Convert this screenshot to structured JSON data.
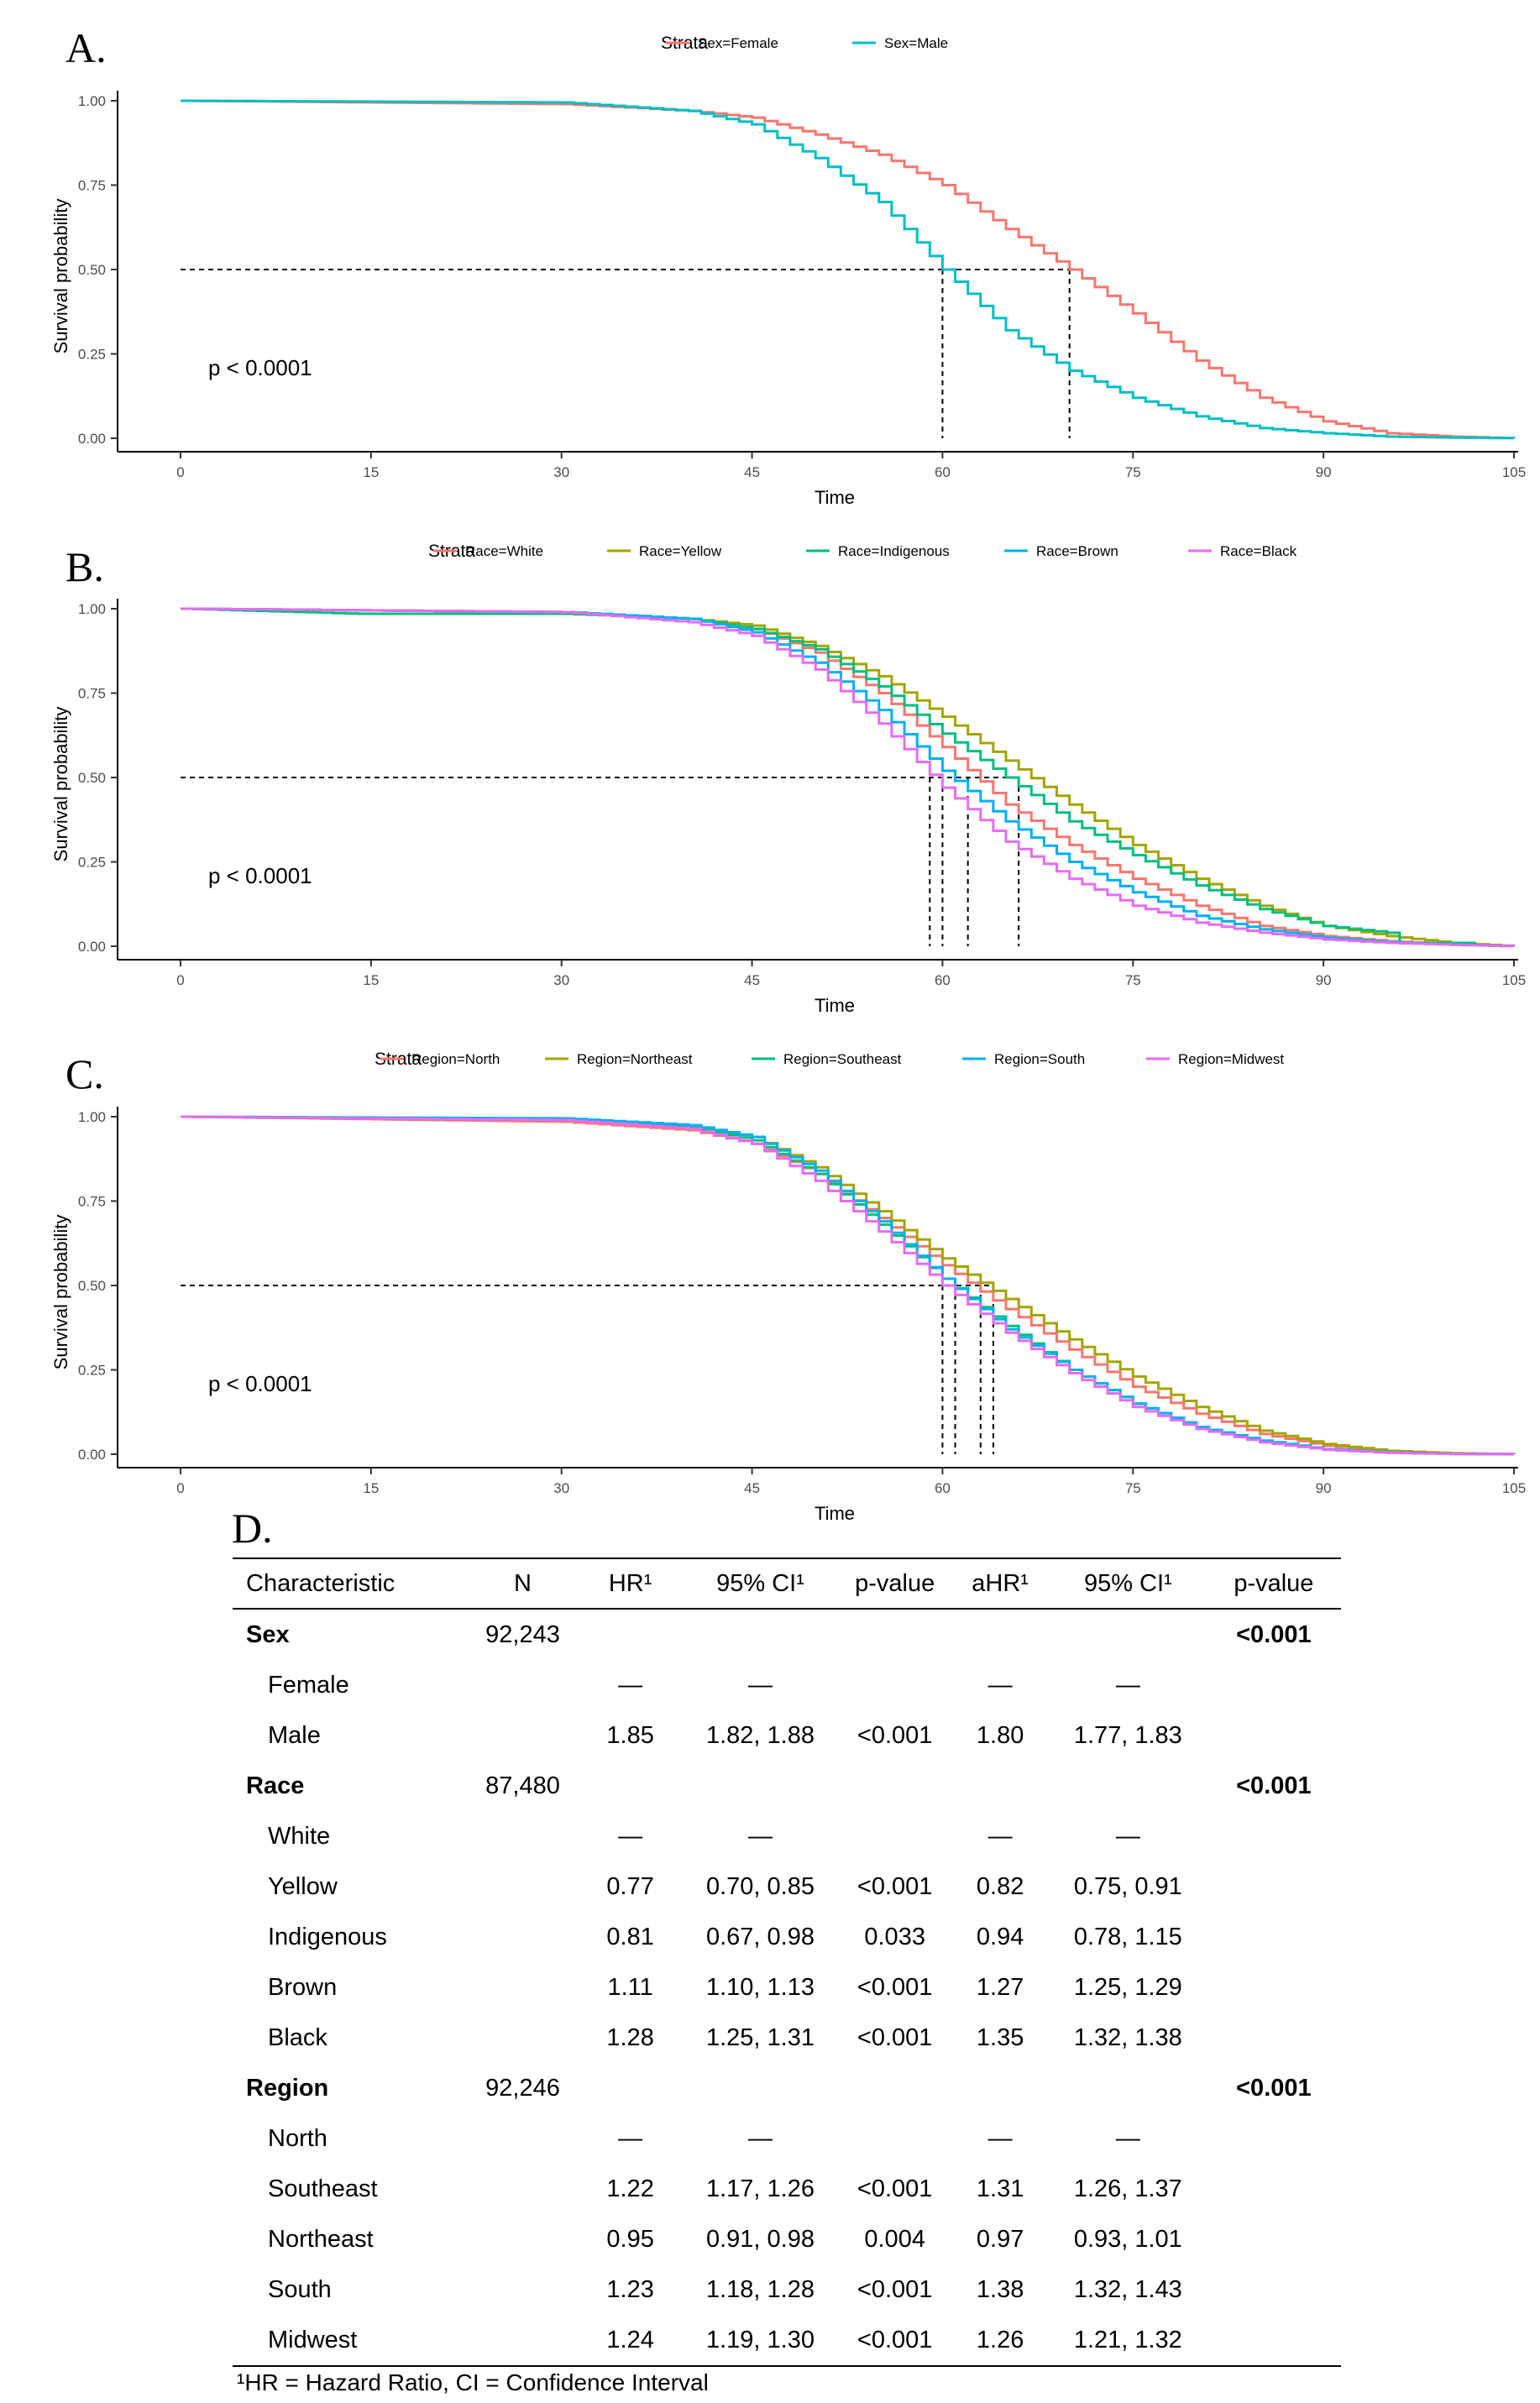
{
  "panel_labels": [
    "A.",
    "B.",
    "C.",
    "D."
  ],
  "chart_data": [
    {
      "type": "line",
      "panel": "A.",
      "xlabel": "Time",
      "ylabel": "Survival probability",
      "xlim": [
        0,
        105
      ],
      "ylim": [
        0,
        1
      ],
      "x_ticks": [
        "0",
        "15",
        "30",
        "45",
        "60",
        "75",
        "90",
        "105"
      ],
      "y_ticks": [
        "0.00",
        "0.25",
        "0.50",
        "0.75",
        "1.00"
      ],
      "legend_title": "Strata",
      "legend_position": "top",
      "annotation": "p < 0.0001",
      "median_survival": [
        60,
        70
      ],
      "series": [
        {
          "name": "Sex=Female",
          "color": "#F8766D",
          "x": [
            0,
            30,
            40,
            45,
            50,
            55,
            60,
            65,
            70,
            75,
            80,
            85,
            90,
            95,
            100,
            105
          ],
          "y": [
            1.0,
            0.99,
            0.97,
            0.95,
            0.9,
            0.84,
            0.75,
            0.62,
            0.5,
            0.37,
            0.23,
            0.12,
            0.05,
            0.015,
            0.005,
            0.0
          ]
        },
        {
          "name": "Sex=Male",
          "color": "#00BFC4",
          "x": [
            0,
            30,
            40,
            45,
            50,
            55,
            60,
            65,
            70,
            75,
            80,
            85,
            90,
            95,
            100,
            105
          ],
          "y": [
            1.0,
            0.995,
            0.97,
            0.93,
            0.83,
            0.7,
            0.5,
            0.32,
            0.2,
            0.12,
            0.065,
            0.03,
            0.015,
            0.005,
            0.002,
            0.0
          ]
        }
      ]
    },
    {
      "type": "line",
      "panel": "B.",
      "xlabel": "Time",
      "ylabel": "Survival probability",
      "xlim": [
        0,
        105
      ],
      "ylim": [
        0,
        1
      ],
      "x_ticks": [
        "0",
        "15",
        "30",
        "45",
        "60",
        "75",
        "90",
        "105"
      ],
      "y_ticks": [
        "0.00",
        "0.25",
        "0.50",
        "0.75",
        "1.00"
      ],
      "legend_title": "Strata",
      "legend_position": "top",
      "annotation": "p < 0.0001",
      "median_survival": [
        59,
        60,
        62,
        66
      ],
      "series": [
        {
          "name": "Race=White",
          "color": "#F8766D",
          "x": [
            0,
            30,
            40,
            45,
            50,
            55,
            60,
            65,
            70,
            75,
            80,
            85,
            90,
            95,
            100,
            105
          ],
          "y": [
            1.0,
            0.99,
            0.97,
            0.94,
            0.87,
            0.75,
            0.59,
            0.42,
            0.3,
            0.2,
            0.12,
            0.06,
            0.03,
            0.015,
            0.005,
            0.0
          ]
        },
        {
          "name": "Race=Yellow",
          "color": "#A3A500",
          "x": [
            0,
            30,
            40,
            45,
            50,
            55,
            60,
            65,
            70,
            75,
            80,
            85,
            90,
            95,
            100,
            105
          ],
          "y": [
            1.0,
            0.99,
            0.97,
            0.95,
            0.89,
            0.8,
            0.68,
            0.55,
            0.42,
            0.3,
            0.2,
            0.12,
            0.06,
            0.03,
            0.01,
            0.0
          ]
        },
        {
          "name": "Race=Indigenous",
          "color": "#00BF7D",
          "x": [
            0,
            14,
            30,
            40,
            45,
            50,
            55,
            60,
            65,
            70,
            75,
            80,
            85,
            90,
            95,
            96,
            102
          ],
          "y": [
            1.0,
            0.985,
            0.985,
            0.97,
            0.94,
            0.88,
            0.77,
            0.63,
            0.5,
            0.37,
            0.27,
            0.18,
            0.11,
            0.06,
            0.04,
            0.01,
            0.01
          ]
        },
        {
          "name": "Race=Brown",
          "color": "#00B0F6",
          "x": [
            0,
            30,
            40,
            45,
            50,
            55,
            60,
            65,
            70,
            75,
            80,
            85,
            90,
            95,
            100,
            105
          ],
          "y": [
            1.0,
            0.99,
            0.97,
            0.93,
            0.84,
            0.7,
            0.52,
            0.37,
            0.25,
            0.16,
            0.09,
            0.05,
            0.025,
            0.012,
            0.005,
            0.0
          ]
        },
        {
          "name": "Race=Black",
          "color": "#E76BF3",
          "x": [
            0,
            30,
            40,
            45,
            50,
            55,
            60,
            65,
            70,
            75,
            80,
            85,
            90,
            95,
            100,
            105
          ],
          "y": [
            1.0,
            0.99,
            0.96,
            0.92,
            0.82,
            0.66,
            0.47,
            0.31,
            0.2,
            0.12,
            0.07,
            0.04,
            0.02,
            0.01,
            0.004,
            0.0
          ]
        }
      ]
    },
    {
      "type": "line",
      "panel": "C.",
      "xlabel": "Time",
      "ylabel": "Survival probability",
      "xlim": [
        0,
        105
      ],
      "ylim": [
        0,
        1
      ],
      "x_ticks": [
        "0",
        "15",
        "30",
        "45",
        "60",
        "75",
        "90",
        "105"
      ],
      "y_ticks": [
        "0.00",
        "0.25",
        "0.50",
        "0.75",
        "1.00"
      ],
      "legend_title": "Strata",
      "legend_position": "top",
      "annotation": "p < 0.0001",
      "median_survival": [
        60,
        61,
        63,
        64
      ],
      "series": [
        {
          "name": "Region=North",
          "color": "#F8766D",
          "x": [
            0,
            30,
            40,
            45,
            50,
            55,
            60,
            65,
            70,
            75,
            80,
            85,
            90,
            95,
            100,
            105
          ],
          "y": [
            1.0,
            0.985,
            0.96,
            0.92,
            0.83,
            0.7,
            0.56,
            0.43,
            0.31,
            0.2,
            0.12,
            0.06,
            0.025,
            0.008,
            0.002,
            0.0
          ]
        },
        {
          "name": "Region=Northeast",
          "color": "#A3A500",
          "x": [
            0,
            30,
            40,
            45,
            50,
            55,
            60,
            65,
            70,
            75,
            80,
            85,
            90,
            95,
            100,
            105
          ],
          "y": [
            1.0,
            0.99,
            0.97,
            0.94,
            0.85,
            0.72,
            0.58,
            0.46,
            0.34,
            0.23,
            0.14,
            0.07,
            0.03,
            0.01,
            0.003,
            0.0
          ]
        },
        {
          "name": "Region=Southeast",
          "color": "#00BF7D",
          "x": [
            0,
            30,
            40,
            45,
            50,
            55,
            60,
            65,
            70,
            75,
            80,
            85,
            90,
            95,
            100,
            105
          ],
          "y": [
            1.0,
            0.99,
            0.97,
            0.93,
            0.83,
            0.68,
            0.52,
            0.38,
            0.25,
            0.15,
            0.08,
            0.04,
            0.015,
            0.005,
            0.001,
            0.0
          ]
        },
        {
          "name": "Region=South",
          "color": "#00B0F6",
          "x": [
            0,
            30,
            40,
            45,
            50,
            55,
            60,
            65,
            70,
            75,
            80,
            85,
            90,
            95,
            100,
            105
          ],
          "y": [
            1.0,
            0.995,
            0.975,
            0.94,
            0.84,
            0.69,
            0.52,
            0.37,
            0.25,
            0.15,
            0.08,
            0.04,
            0.015,
            0.005,
            0.001,
            0.0
          ]
        },
        {
          "name": "Region=Midwest",
          "color": "#E76BF3",
          "x": [
            0,
            30,
            40,
            45,
            50,
            55,
            60,
            65,
            70,
            75,
            80,
            85,
            90,
            95,
            100,
            105
          ],
          "y": [
            1.0,
            0.99,
            0.965,
            0.92,
            0.81,
            0.66,
            0.5,
            0.36,
            0.24,
            0.14,
            0.075,
            0.035,
            0.013,
            0.004,
            0.001,
            0.0
          ]
        }
      ]
    },
    {
      "type": "table",
      "panel": "D.",
      "columns": [
        "Characteristic",
        "N",
        "HR¹",
        "95% CI¹",
        "p-value",
        "aHR¹",
        "95% CI¹",
        "p-value"
      ],
      "rows": [
        {
          "label": "Sex",
          "group": true,
          "cells": [
            "92,243",
            "",
            "",
            "",
            "",
            "",
            "<0.001"
          ]
        },
        {
          "label": "Female",
          "group": false,
          "cells": [
            "",
            "—",
            "—",
            "",
            "—",
            "—",
            ""
          ]
        },
        {
          "label": "Male",
          "group": false,
          "cells": [
            "",
            "1.85",
            "1.82, 1.88",
            "<0.001",
            "1.80",
            "1.77, 1.83",
            ""
          ]
        },
        {
          "label": "Race",
          "group": true,
          "cells": [
            "87,480",
            "",
            "",
            "",
            "",
            "",
            "<0.001"
          ]
        },
        {
          "label": "White",
          "group": false,
          "cells": [
            "",
            "—",
            "—",
            "",
            "—",
            "—",
            ""
          ]
        },
        {
          "label": "Yellow",
          "group": false,
          "cells": [
            "",
            "0.77",
            "0.70, 0.85",
            "<0.001",
            "0.82",
            "0.75, 0.91",
            ""
          ]
        },
        {
          "label": "Indigenous",
          "group": false,
          "cells": [
            "",
            "0.81",
            "0.67, 0.98",
            "0.033",
            "0.94",
            "0.78, 1.15",
            ""
          ]
        },
        {
          "label": "Brown",
          "group": false,
          "cells": [
            "",
            "1.11",
            "1.10, 1.13",
            "<0.001",
            "1.27",
            "1.25, 1.29",
            ""
          ]
        },
        {
          "label": "Black",
          "group": false,
          "cells": [
            "",
            "1.28",
            "1.25, 1.31",
            "<0.001",
            "1.35",
            "1.32, 1.38",
            ""
          ]
        },
        {
          "label": "Region",
          "group": true,
          "cells": [
            "92,246",
            "",
            "",
            "",
            "",
            "",
            "<0.001"
          ]
        },
        {
          "label": "North",
          "group": false,
          "cells": [
            "",
            "—",
            "—",
            "",
            "—",
            "—",
            ""
          ]
        },
        {
          "label": "Southeast",
          "group": false,
          "cells": [
            "",
            "1.22",
            "1.17, 1.26",
            "<0.001",
            "1.31",
            "1.26, 1.37",
            ""
          ]
        },
        {
          "label": "Northeast",
          "group": false,
          "cells": [
            "",
            "0.95",
            "0.91, 0.98",
            "0.004",
            "0.97",
            "0.93, 1.01",
            ""
          ]
        },
        {
          "label": "South",
          "group": false,
          "cells": [
            "",
            "1.23",
            "1.18, 1.28",
            "<0.001",
            "1.38",
            "1.32, 1.43",
            ""
          ]
        },
        {
          "label": "Midwest",
          "group": false,
          "cells": [
            "",
            "1.24",
            "1.19, 1.30",
            "<0.001",
            "1.26",
            "1.21, 1.32",
            ""
          ]
        }
      ],
      "footnote": "¹HR = Hazard Ratio, CI = Confidence Interval"
    }
  ]
}
